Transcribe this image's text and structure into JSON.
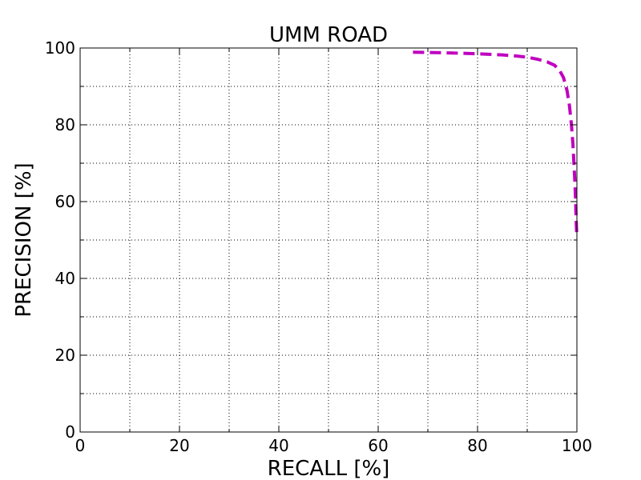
{
  "chart_data": {
    "type": "line",
    "title": "UMM ROAD",
    "xlabel": "RECALL [%]",
    "ylabel": "PRECISION [%]",
    "xlim": [
      0,
      100
    ],
    "ylim": [
      0,
      100
    ],
    "x_ticks": [
      0,
      20,
      40,
      60,
      80,
      100
    ],
    "y_ticks": [
      0,
      20,
      40,
      60,
      80,
      100
    ],
    "x_minor_ticks": [
      10,
      30,
      50,
      70,
      90
    ],
    "y_minor_ticks": [
      10,
      30,
      50,
      70,
      90
    ],
    "x_tick_labels": [
      "0",
      "20",
      "40",
      "60",
      "80",
      "100"
    ],
    "y_tick_labels": [
      "0",
      "20",
      "40",
      "60",
      "80",
      "100"
    ],
    "grid": true,
    "series": [
      {
        "color": "#bf00bf",
        "line_style": "dashed",
        "x": [
          67.0,
          70.0,
          75.0,
          80.0,
          85.0,
          88.0,
          90.0,
          92.0,
          94.0,
          95.5,
          96.5,
          97.3,
          98.0,
          98.5,
          98.9,
          99.2,
          99.4,
          99.6,
          99.75,
          99.85,
          99.95
        ],
        "y": [
          98.9,
          98.85,
          98.7,
          98.5,
          98.2,
          97.9,
          97.6,
          97.1,
          96.4,
          95.5,
          94.2,
          92.3,
          89.0,
          85.0,
          80.0,
          75.0,
          70.0,
          65.0,
          60.0,
          55.0,
          52.0
        ]
      }
    ]
  }
}
